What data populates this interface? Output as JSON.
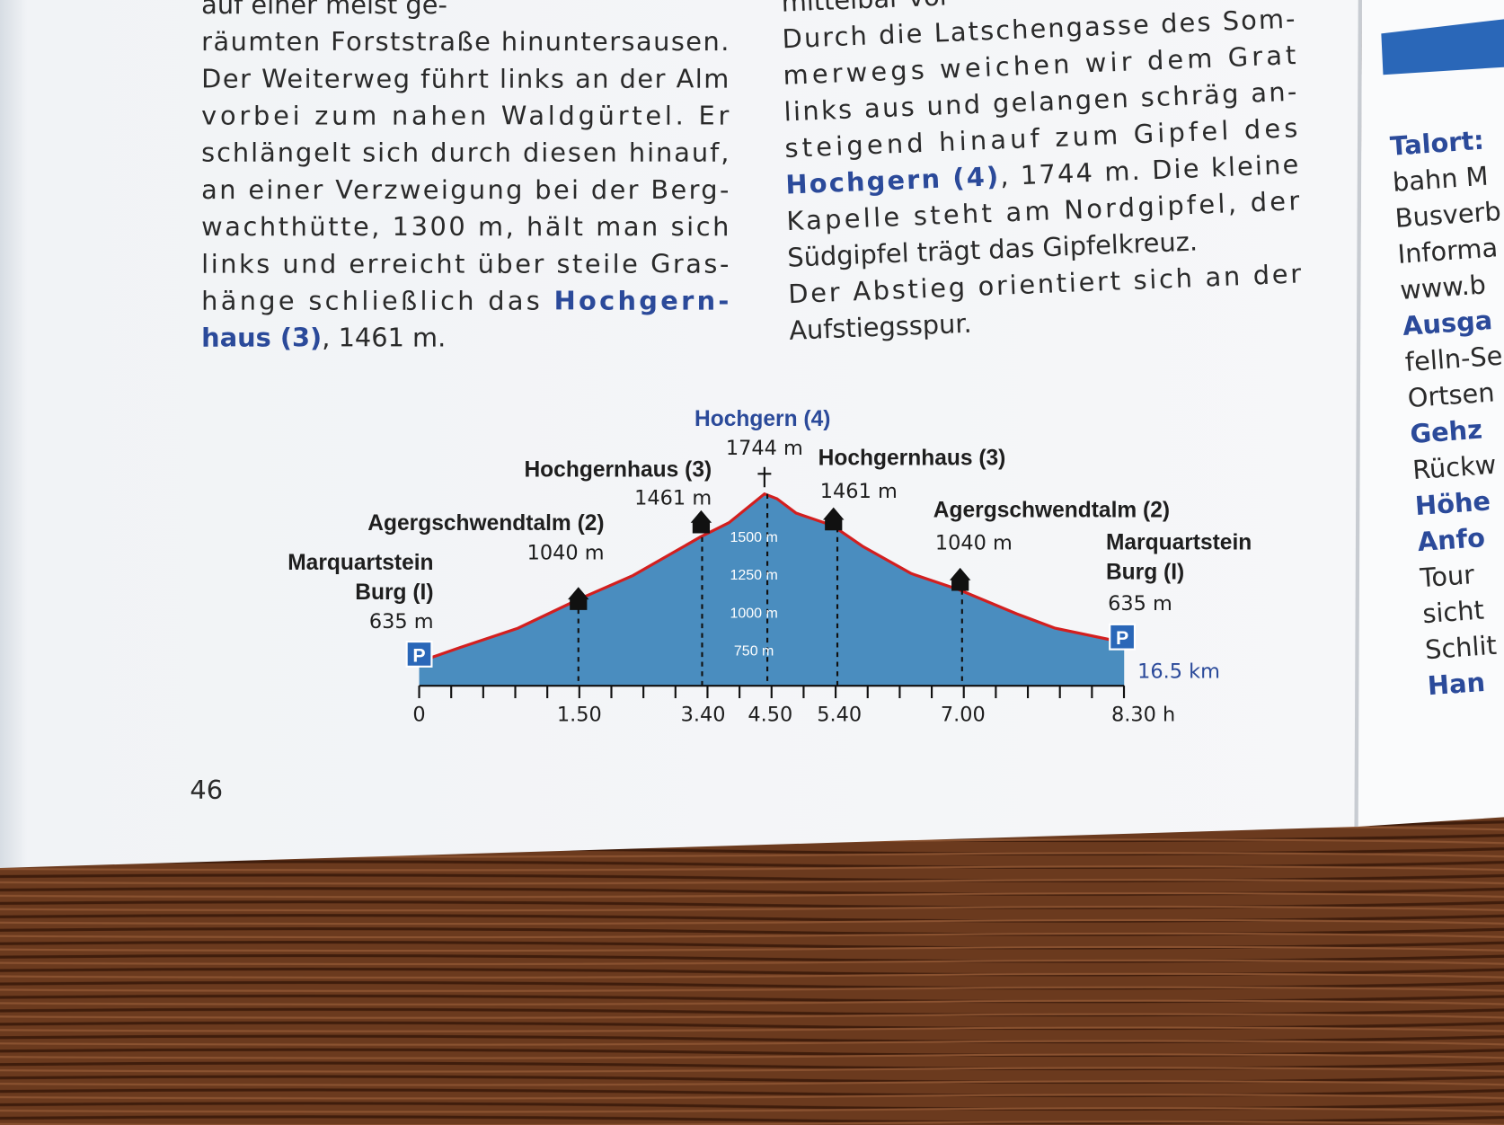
{
  "left_column": [
    [
      {
        "text": "auf einer meist ge-"
      }
    ],
    [
      {
        "text": "räumten Forststraße hinuntersausen."
      }
    ],
    [
      {
        "text": "Der Weiterweg führt links an der Alm"
      }
    ],
    [
      {
        "text": "vorbei zum nahen Waldgürtel. Er"
      }
    ],
    [
      {
        "text": "schlängelt sich durch diesen hinauf,"
      }
    ],
    [
      {
        "text": "an einer Verzweigung bei der Berg-"
      }
    ],
    [
      {
        "text": "wachthütte, 1300 m, hält man sich"
      }
    ],
    [
      {
        "text": "links und erreicht über steile Gras-"
      }
    ],
    [
      {
        "text": "hänge schließlich das "
      },
      {
        "text": "Hochgern-",
        "highlight": true
      }
    ],
    [
      {
        "text": "haus (3)",
        "highlight": true
      },
      {
        "text": ", 1461 m."
      }
    ]
  ],
  "right_column": [
    [
      {
        "text": "mittelbar vor"
      }
    ],
    [
      {
        "text": "Durch die Latschengasse des Som-"
      }
    ],
    [
      {
        "text": "merwegs weichen wir dem Grat"
      }
    ],
    [
      {
        "text": "links aus und gelangen schräg an-"
      }
    ],
    [
      {
        "text": "steigend hinauf zum Gipfel des"
      }
    ],
    [
      {
        "text": "Hochgern (4)",
        "highlight": true
      },
      {
        "text": ", 1744 m. Die kleine"
      }
    ],
    [
      {
        "text": "Kapelle steht am Nordgipfel, der"
      }
    ],
    [
      {
        "text": "Südgipfel trägt das Gipfelkreuz."
      }
    ],
    [
      {
        "text": "Der Abstieg orientiert sich an der"
      }
    ],
    [
      {
        "text": "Aufstiegsspur."
      }
    ]
  ],
  "next_page": [
    {
      "text": "Talort:",
      "highlight": true
    },
    {
      "text": "bahn M"
    },
    {
      "text": "Busverb"
    },
    {
      "text": "Informa"
    },
    {
      "text": "www.b"
    },
    {
      "text": "Ausga",
      "highlight": true
    },
    {
      "text": "felln-Se"
    },
    {
      "text": "Ortsen"
    },
    {
      "text": "Gehz",
      "highlight": true
    },
    {
      "text": "Rückw"
    },
    {
      "text": "Höhe",
      "highlight": true
    },
    {
      "text": "Anfo",
      "highlight": true
    },
    {
      "text": "Tour"
    },
    {
      "text": "sicht"
    },
    {
      "text": "Schlit"
    },
    {
      "text": "Han",
      "highlight": true
    }
  ],
  "profile": {
    "summit": {
      "name": "Hochgern (4)",
      "altitude": "1744 m"
    },
    "points": [
      {
        "name": [
          "Marquartstein",
          "Burg (I)"
        ],
        "altitude": "635 m"
      },
      {
        "name": [
          "Agergschwendtalm (2)"
        ],
        "altitude": "1040 m"
      },
      {
        "name": [
          "Hochgernhaus (3)"
        ],
        "altitude": "1461 m"
      },
      {
        "name": [
          "Hochgernhaus (3)"
        ],
        "altitude": "1461 m"
      },
      {
        "name": [
          "Agergschwendtalm (2)"
        ],
        "altitude": "1040 m"
      },
      {
        "name": [
          "Marquartstein",
          "Burg (I)"
        ],
        "altitude": "635 m"
      }
    ],
    "altitude_scale": [
      "1500 m",
      "1250 m",
      "1000 m",
      "750 m"
    ],
    "times": [
      "0",
      "1.50",
      "3.40",
      "4.50",
      "5.40",
      "7.00",
      "8.30 h"
    ],
    "distance": "16.5 km"
  },
  "page_number": "46"
}
